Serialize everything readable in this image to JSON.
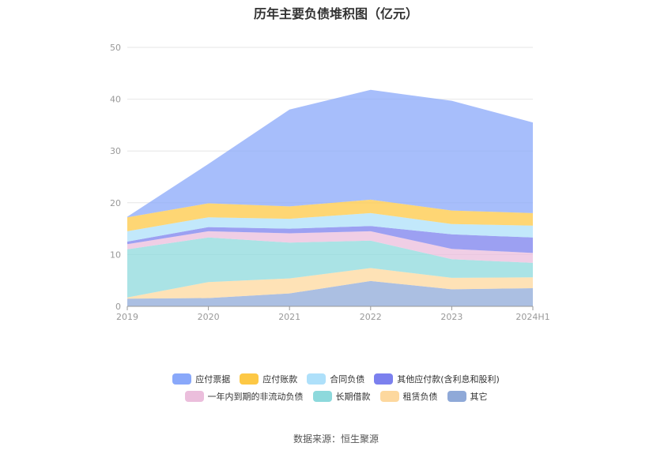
{
  "chart_data": {
    "type": "area",
    "stacked": true,
    "title": "历年主要负债堆积图（亿元）",
    "categories": [
      "2019",
      "2020",
      "2021",
      "2022",
      "2023",
      "2024H1"
    ],
    "ylim": [
      0,
      50
    ],
    "yticks": [
      0,
      10,
      20,
      30,
      40,
      50
    ],
    "grid": true,
    "legend_position": "bottom",
    "series": [
      {
        "name": "其它",
        "color": "#8fa9d8",
        "values": [
          1.5,
          1.6,
          2.5,
          4.9,
          3.3,
          3.5
        ]
      },
      {
        "name": "租赁负债",
        "color": "#fdd89e",
        "values": [
          0.2,
          3.1,
          2.9,
          2.5,
          2.2,
          2.1
        ]
      },
      {
        "name": "长期借款",
        "color": "#8dd9dc",
        "values": [
          9.3,
          8.6,
          6.9,
          5.3,
          3.6,
          2.8
        ]
      },
      {
        "name": "一年内到期的非流动负债",
        "color": "#ebbedc",
        "values": [
          1.0,
          1.2,
          1.8,
          1.8,
          2.0,
          1.9
        ]
      },
      {
        "name": "其他应付款(含利息和股利)",
        "color": "#7b80ee",
        "values": [
          0.5,
          0.8,
          0.9,
          1.0,
          2.8,
          3.0
        ]
      },
      {
        "name": "合同负债",
        "color": "#aee0fa",
        "values": [
          2.0,
          1.9,
          1.9,
          2.5,
          2.0,
          2.3
        ]
      },
      {
        "name": "应付账款",
        "color": "#fdc845",
        "values": [
          2.7,
          2.7,
          2.4,
          2.6,
          2.6,
          2.4
        ]
      },
      {
        "name": "应付票据",
        "color": "#89a8fa",
        "values": [
          0.1,
          7.6,
          18.7,
          21.2,
          21.2,
          17.5
        ]
      }
    ]
  },
  "legend_rows": [
    [
      "应付票据",
      "应付账款",
      "合同负债",
      "其他应付款(含利息和股利)"
    ],
    [
      "一年内到期的非流动负债",
      "长期借款",
      "租赁负债",
      "其它"
    ]
  ],
  "source": "数据来源：恒生聚源"
}
